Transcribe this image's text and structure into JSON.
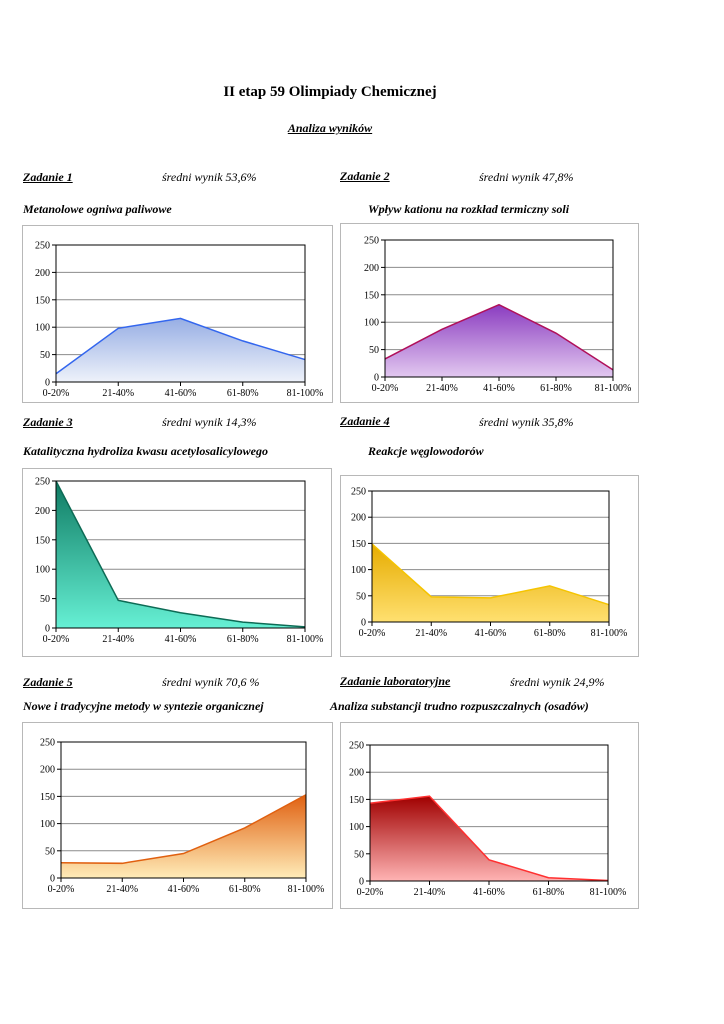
{
  "header": {
    "title": "II etap 59 Olimpiady Chemicznej",
    "subtitle": "Analiza wyników"
  },
  "tasks": [
    {
      "label": "Zadanie 1",
      "average": "średni wynik 53,6%",
      "topic": "Metanolowe ogniwa paliwowe"
    },
    {
      "label": "Zadanie 2",
      "average": "średni wynik 47,8%",
      "topic": "Wpływ kationu na rozkład termiczny soli"
    },
    {
      "label": "Zadanie 3",
      "average": "średni wynik 14,3%",
      "topic": "Katalityczna hydroliza kwasu acetylosalicylowego"
    },
    {
      "label": "Zadanie 4",
      "average": "średni wynik  35,8%",
      "topic": "Reakcje węglowodorów"
    },
    {
      "label": "Zadanie 5",
      "average": "średni wynik 70,6 %",
      "topic": "Nowe i tradycyjne metody w syntezie organicznej"
    },
    {
      "label": "Zadanie laboratoryjne",
      "average": "średni wynik 24,9%",
      "topic": "Analiza substancji trudno rozpuszczalnych (osadów)"
    }
  ],
  "chart_data": [
    {
      "type": "area",
      "title": "Metanolowe ogniwa paliwowe",
      "categories": [
        "0-20%",
        "21-40%",
        "41-60%",
        "61-80%",
        "81-100%"
      ],
      "values": [
        15,
        98,
        116,
        75,
        41
      ],
      "ylim": [
        0,
        250
      ],
      "yticks": [
        "0",
        "50",
        "100",
        "150",
        "200",
        "250"
      ],
      "grid": true,
      "line_color": "#3366ee",
      "fill_top": "#97aee4",
      "fill_bottom": "#eef2fa"
    },
    {
      "type": "area",
      "title": "Wpływ kationu na rozkład termiczny soli",
      "categories": [
        "0-20%",
        "21-40%",
        "41-60%",
        "61-80%",
        "81-100%"
      ],
      "values": [
        33,
        87,
        132,
        80,
        13
      ],
      "ylim": [
        0,
        250
      ],
      "yticks": [
        "0",
        "50",
        "100",
        "150",
        "200",
        "250"
      ],
      "grid": true,
      "line_color": "#b0105a",
      "fill_top": "#8a3cc0",
      "fill_bottom": "#e2c8f0"
    },
    {
      "type": "area",
      "title": "Katalityczna hydroliza kwasu acetylosalicylowego",
      "categories": [
        "0-20%",
        "21-40%",
        "41-60%",
        "61-80%",
        "81-100%"
      ],
      "values": [
        250,
        47,
        26,
        10,
        2
      ],
      "ylim": [
        0,
        250
      ],
      "yticks": [
        "0",
        "50",
        "100",
        "150",
        "200",
        "250"
      ],
      "grid": true,
      "line_color": "#0d6b55",
      "fill_top": "#0e7a62",
      "fill_bottom": "#66f0d4"
    },
    {
      "type": "area",
      "title": "Reakcje węglowodorów",
      "categories": [
        "0-20%",
        "21-40%",
        "41-60%",
        "61-80%",
        "81-100%"
      ],
      "values": [
        149,
        48,
        46,
        69,
        33
      ],
      "ylim": [
        0,
        250
      ],
      "yticks": [
        "0",
        "50",
        "100",
        "150",
        "200",
        "250"
      ],
      "grid": true,
      "line_color": "#f5c400",
      "fill_top": "#e6ac00",
      "fill_bottom": "#ffe070"
    },
    {
      "type": "area",
      "title": "Nowe i tradycyjne metody w syntezie organicznej",
      "categories": [
        "0-20%",
        "21-40%",
        "41-60%",
        "61-80%",
        "81-100%"
      ],
      "values": [
        28,
        27,
        45,
        92,
        153
      ],
      "ylim": [
        0,
        250
      ],
      "yticks": [
        "0",
        "50",
        "100",
        "150",
        "200",
        "250"
      ],
      "grid": true,
      "line_color": "#e06010",
      "fill_top": "#e06010",
      "fill_bottom": "#ffecb8"
    },
    {
      "type": "area",
      "title": "Analiza substancji trudno rozpuszczalnych (osadów)",
      "categories": [
        "0-20%",
        "21-40%",
        "41-60%",
        "61-80%",
        "81-100%"
      ],
      "values": [
        143,
        156,
        39,
        6,
        1
      ],
      "ylim": [
        0,
        250
      ],
      "yticks": [
        "0",
        "50",
        "100",
        "150",
        "200",
        "250"
      ],
      "grid": true,
      "line_color": "#ff3030",
      "fill_top": "#a00000",
      "fill_bottom": "#ffb4b4"
    }
  ]
}
